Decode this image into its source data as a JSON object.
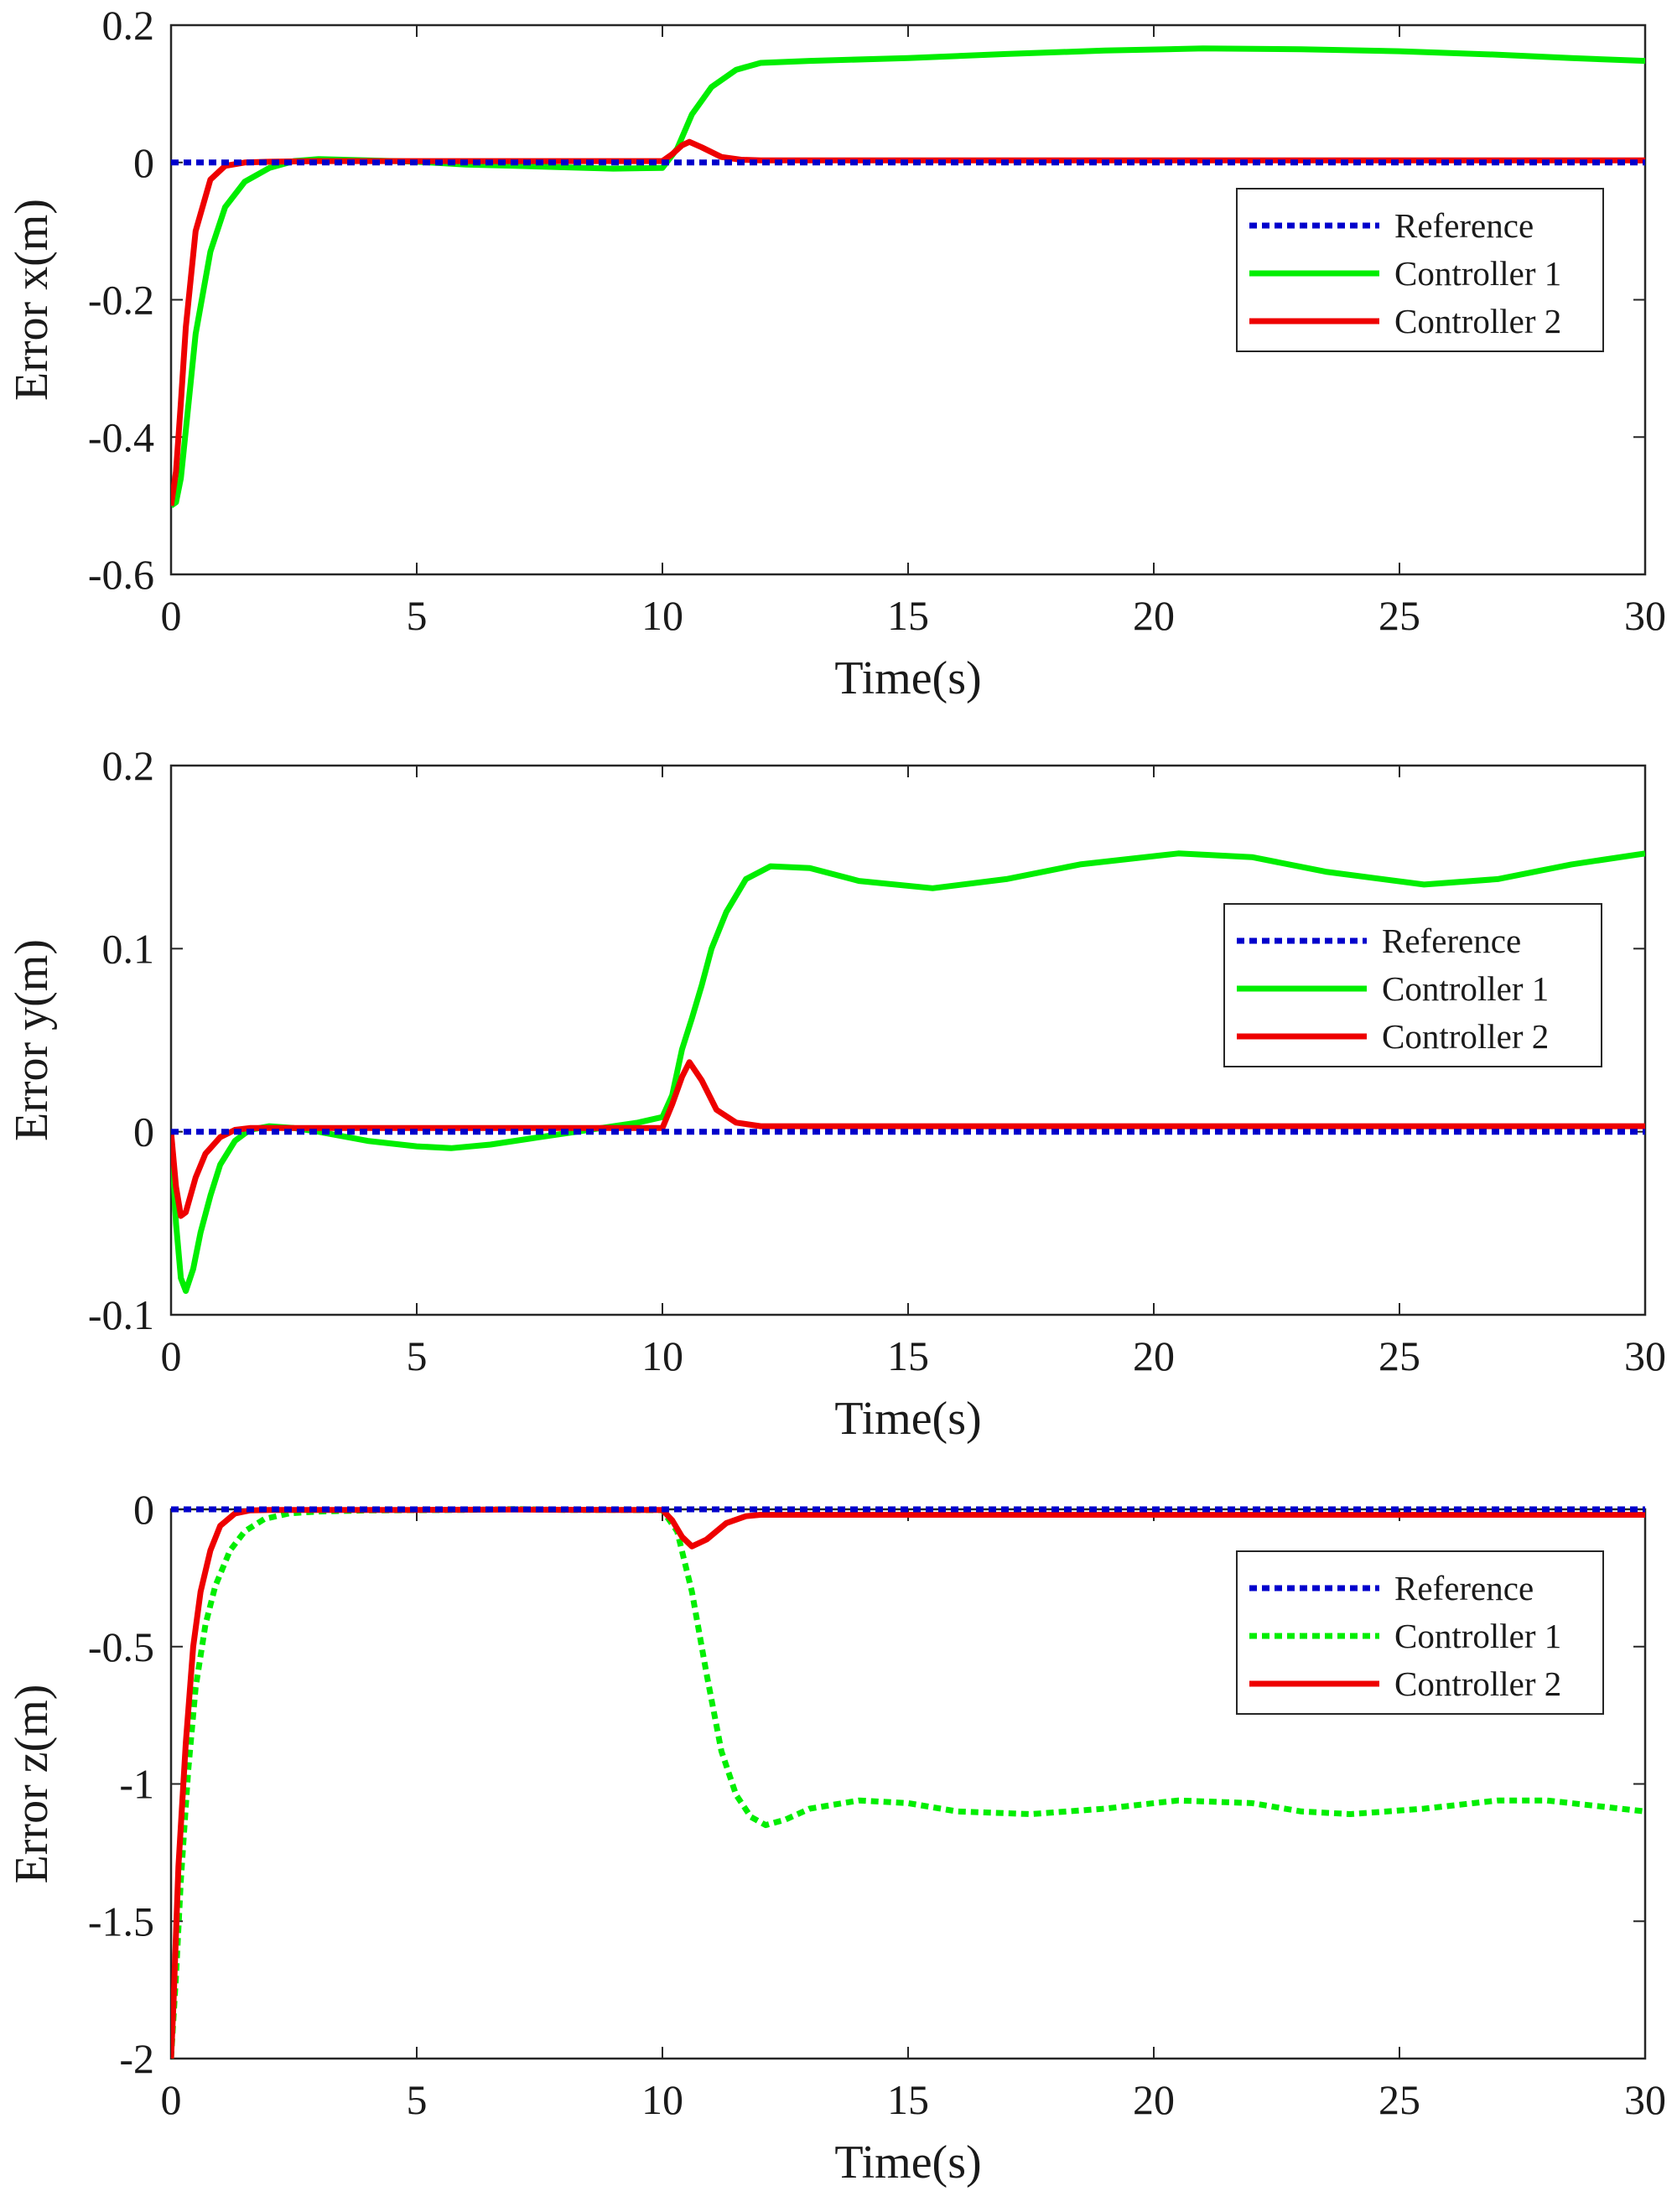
{
  "chart_data": [
    {
      "type": "line",
      "xlabel": "Time(s)",
      "ylabel": "Error x(m)",
      "xlim": [
        0,
        30
      ],
      "ylim": [
        -0.6,
        0.2
      ],
      "xticks": [
        0,
        5,
        10,
        15,
        20,
        25,
        30
      ],
      "yticks": [
        0.2,
        0,
        -0.2,
        -0.4,
        -0.6
      ],
      "xtick_labels": [
        "0",
        "5",
        "10",
        "15",
        "20",
        "25",
        "30"
      ],
      "ytick_labels": [
        "0.2",
        "0",
        "-0.2",
        "-0.4",
        "-0.6"
      ],
      "grid": false,
      "legend_position": "right",
      "series": [
        {
          "name": "Reference",
          "color": "#0000cc",
          "style": "dotted",
          "x": [
            0,
            30
          ],
          "y": [
            0,
            0
          ]
        },
        {
          "name": "Controller 1",
          "color": "#00ee00",
          "style": "solid",
          "x": [
            0,
            0.1,
            0.2,
            0.3,
            0.5,
            0.8,
            1.1,
            1.5,
            2,
            2.5,
            3,
            4,
            5,
            6,
            7,
            8,
            9,
            10,
            10.3,
            10.6,
            11,
            11.5,
            12,
            13,
            15,
            17,
            19,
            21,
            23,
            25,
            27,
            28.5,
            30
          ],
          "y": [
            -0.5,
            -0.495,
            -0.46,
            -0.39,
            -0.25,
            -0.13,
            -0.065,
            -0.028,
            -0.008,
            0.002,
            0.005,
            0.003,
            0.001,
            -0.003,
            -0.005,
            -0.007,
            -0.009,
            -0.008,
            0.02,
            0.07,
            0.11,
            0.135,
            0.145,
            0.148,
            0.152,
            0.158,
            0.163,
            0.166,
            0.165,
            0.162,
            0.157,
            0.152,
            0.148
          ]
        },
        {
          "name": "Controller 2",
          "color": "#ee0000",
          "style": "solid",
          "x": [
            0,
            0.1,
            0.2,
            0.3,
            0.5,
            0.8,
            1.1,
            1.5,
            2,
            3,
            5,
            7,
            9,
            10,
            10.2,
            10.4,
            10.55,
            10.8,
            11.2,
            11.6,
            12,
            15,
            20,
            25,
            30
          ],
          "y": [
            -0.5,
            -0.45,
            -0.35,
            -0.24,
            -0.1,
            -0.025,
            -0.005,
            0,
            0.001,
            0.002,
            0.002,
            0.002,
            0.002,
            0.002,
            0.012,
            0.025,
            0.03,
            0.022,
            0.008,
            0.004,
            0.003,
            0.003,
            0.003,
            0.003,
            0.003
          ]
        }
      ]
    },
    {
      "type": "line",
      "xlabel": "Time(s)",
      "ylabel": "Error y(m)",
      "xlim": [
        0,
        30
      ],
      "ylim": [
        -0.1,
        0.2
      ],
      "xticks": [
        0,
        5,
        10,
        15,
        20,
        25,
        30
      ],
      "yticks": [
        0.2,
        0.1,
        0,
        -0.1
      ],
      "xtick_labels": [
        "0",
        "5",
        "10",
        "15",
        "20",
        "25",
        "30"
      ],
      "ytick_labels": [
        "0.2",
        "0.1",
        "0",
        "-0.1"
      ],
      "grid": false,
      "legend_position": "right",
      "series": [
        {
          "name": "Reference",
          "color": "#0000cc",
          "style": "dotted",
          "x": [
            0,
            30
          ],
          "y": [
            0,
            0
          ]
        },
        {
          "name": "Controller 1",
          "color": "#00ee00",
          "style": "solid",
          "x": [
            0,
            0.1,
            0.2,
            0.3,
            0.45,
            0.6,
            0.8,
            1.0,
            1.3,
            1.6,
            2,
            2.5,
            3,
            4,
            5,
            5.7,
            6.5,
            7.5,
            8.5,
            9.5,
            10,
            10.2,
            10.4,
            10.6,
            10.8,
            11,
            11.3,
            11.7,
            12.2,
            13,
            14,
            15.5,
            17,
            18.5,
            20.5,
            22,
            23.5,
            25.5,
            27,
            28.5,
            30
          ],
          "y": [
            0,
            -0.05,
            -0.08,
            -0.087,
            -0.075,
            -0.055,
            -0.035,
            -0.018,
            -0.005,
            0.001,
            0.003,
            0.002,
            0,
            -0.005,
            -0.008,
            -0.009,
            -0.007,
            -0.003,
            0.001,
            0.005,
            0.008,
            0.02,
            0.045,
            0.062,
            0.08,
            0.1,
            0.12,
            0.138,
            0.145,
            0.144,
            0.137,
            0.133,
            0.138,
            0.146,
            0.152,
            0.15,
            0.142,
            0.135,
            0.138,
            0.146,
            0.152
          ]
        },
        {
          "name": "Controller 2",
          "color": "#ee0000",
          "style": "solid",
          "x": [
            0,
            0.1,
            0.2,
            0.3,
            0.5,
            0.7,
            1.0,
            1.3,
            1.6,
            2,
            3,
            5,
            7,
            9,
            10,
            10.2,
            10.4,
            10.55,
            10.8,
            11.1,
            11.5,
            12,
            15,
            20,
            25,
            30
          ],
          "y": [
            0,
            -0.03,
            -0.046,
            -0.044,
            -0.025,
            -0.012,
            -0.003,
            0.001,
            0.002,
            0.002,
            0.002,
            0.002,
            0.002,
            0.002,
            0.002,
            0.015,
            0.03,
            0.038,
            0.028,
            0.012,
            0.005,
            0.003,
            0.003,
            0.003,
            0.003,
            0.003
          ]
        }
      ]
    },
    {
      "type": "line",
      "xlabel": "Time(s)",
      "ylabel": "Error z(m)",
      "xlim": [
        0,
        30
      ],
      "ylim": [
        -2,
        0
      ],
      "xticks": [
        0,
        5,
        10,
        15,
        20,
        25,
        30
      ],
      "yticks": [
        0,
        -0.5,
        -1,
        -1.5,
        -2
      ],
      "xtick_labels": [
        "0",
        "5",
        "10",
        "15",
        "20",
        "25",
        "30"
      ],
      "ytick_labels": [
        "0",
        "-0.5",
        "-1",
        "-1.5",
        "-2"
      ],
      "grid": false,
      "legend_position": "top-right",
      "series": [
        {
          "name": "Reference",
          "color": "#0000cc",
          "style": "dotted",
          "x": [
            0,
            30
          ],
          "y": [
            0,
            0
          ]
        },
        {
          "name": "Controller 1",
          "color": "#00ee00",
          "style": "dotted",
          "x": [
            0,
            0.1,
            0.2,
            0.35,
            0.5,
            0.7,
            0.9,
            1.2,
            1.5,
            1.9,
            2.4,
            3,
            4,
            5,
            6,
            7,
            8,
            9,
            10,
            10.3,
            10.6,
            10.9,
            11.2,
            11.5,
            11.8,
            12.1,
            12.5,
            13,
            14,
            15,
            16,
            17.5,
            19,
            20.5,
            22,
            23,
            24,
            25.5,
            27,
            28,
            29,
            30
          ],
          "y": [
            -2,
            -1.7,
            -1.35,
            -0.95,
            -0.65,
            -0.42,
            -0.28,
            -0.15,
            -0.08,
            -0.035,
            -0.015,
            -0.008,
            -0.004,
            -0.003,
            -0.002,
            0.001,
            -0.002,
            -0.002,
            -0.003,
            -0.08,
            -0.3,
            -0.6,
            -0.88,
            -1.04,
            -1.12,
            -1.15,
            -1.13,
            -1.09,
            -1.06,
            -1.07,
            -1.1,
            -1.11,
            -1.09,
            -1.06,
            -1.07,
            -1.1,
            -1.11,
            -1.09,
            -1.06,
            -1.06,
            -1.08,
            -1.1
          ]
        },
        {
          "name": "Controller 2",
          "color": "#ee0000",
          "style": "solid",
          "x": [
            0,
            0.05,
            0.15,
            0.3,
            0.45,
            0.6,
            0.8,
            1.0,
            1.3,
            1.6,
            2,
            3,
            5,
            7,
            9,
            10,
            10.2,
            10.4,
            10.6,
            10.9,
            11.3,
            11.7,
            12,
            15,
            20,
            25,
            30
          ],
          "y": [
            -2,
            -1.8,
            -1.3,
            -0.85,
            -0.5,
            -0.3,
            -0.15,
            -0.06,
            -0.015,
            -0.004,
            -0.002,
            -0.002,
            -0.002,
            -0.001,
            -0.002,
            -0.002,
            -0.04,
            -0.1,
            -0.135,
            -0.11,
            -0.05,
            -0.025,
            -0.02,
            -0.02,
            -0.02,
            -0.02,
            -0.02
          ]
        }
      ]
    }
  ]
}
